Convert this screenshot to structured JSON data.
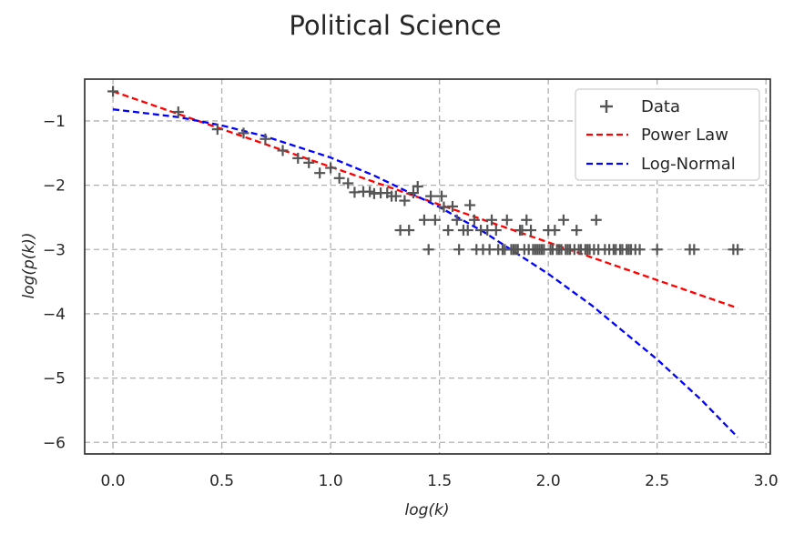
{
  "chart_data": {
    "type": "scatter",
    "title": "Political Science",
    "xlabel": "log(k)",
    "ylabel": "log(p(k))",
    "xlim": [
      -0.13,
      3.02
    ],
    "ylim": [
      -6.18,
      -0.35
    ],
    "x_ticks": [
      0.0,
      0.5,
      1.0,
      1.5,
      2.0,
      2.5,
      3.0
    ],
    "x_tick_labels": [
      "0.0",
      "0.5",
      "1.0",
      "1.5",
      "2.0",
      "2.5",
      "3.0"
    ],
    "y_ticks": [
      -1,
      -2,
      -3,
      -4,
      -5,
      -6
    ],
    "y_tick_labels": [
      "−1",
      "−2",
      "−3",
      "−4",
      "−5",
      "−6"
    ],
    "grid": true,
    "legend_position": "top-right",
    "colors": {
      "data": "#555555",
      "power_law": "#ff0000",
      "log_normal": "#0000ff",
      "grid": "#b0b0b0"
    },
    "series": [
      {
        "name": "Data",
        "kind": "scatter",
        "marker": "+",
        "points": [
          [
            0.0,
            -0.54
          ],
          [
            0.3,
            -0.86
          ],
          [
            0.48,
            -1.13
          ],
          [
            0.6,
            -1.19
          ],
          [
            0.7,
            -1.28
          ],
          [
            0.78,
            -1.46
          ],
          [
            0.85,
            -1.58
          ],
          [
            0.9,
            -1.65
          ],
          [
            0.95,
            -1.81
          ],
          [
            1.0,
            -1.73
          ],
          [
            1.04,
            -1.89
          ],
          [
            1.08,
            -1.97
          ],
          [
            1.11,
            -2.11
          ],
          [
            1.15,
            -2.1
          ],
          [
            1.18,
            -2.1
          ],
          [
            1.2,
            -2.13
          ],
          [
            1.23,
            -2.12
          ],
          [
            1.26,
            -2.12
          ],
          [
            1.28,
            -2.17
          ],
          [
            1.3,
            -2.17
          ],
          [
            1.32,
            -2.7
          ],
          [
            1.34,
            -2.24
          ],
          [
            1.36,
            -2.7
          ],
          [
            1.38,
            -2.12
          ],
          [
            1.4,
            -2.02
          ],
          [
            1.43,
            -2.54
          ],
          [
            1.45,
            -3.0
          ],
          [
            1.46,
            -2.17
          ],
          [
            1.48,
            -2.54
          ],
          [
            1.51,
            -2.17
          ],
          [
            1.52,
            -2.34
          ],
          [
            1.54,
            -2.7
          ],
          [
            1.56,
            -2.33
          ],
          [
            1.58,
            -2.54
          ],
          [
            1.59,
            -3.0
          ],
          [
            1.61,
            -2.7
          ],
          [
            1.63,
            -2.7
          ],
          [
            1.64,
            -2.31
          ],
          [
            1.66,
            -2.54
          ],
          [
            1.67,
            -3.0
          ],
          [
            1.69,
            -2.7
          ],
          [
            1.7,
            -3.0
          ],
          [
            1.72,
            -2.7
          ],
          [
            1.73,
            -3.0
          ],
          [
            1.74,
            -2.54
          ],
          [
            1.76,
            -2.7
          ],
          [
            1.77,
            -3.0
          ],
          [
            1.79,
            -3.0
          ],
          [
            1.8,
            -3.0
          ],
          [
            1.81,
            -2.54
          ],
          [
            1.83,
            -3.0
          ],
          [
            1.84,
            -3.0
          ],
          [
            1.85,
            -3.0
          ],
          [
            1.86,
            -3.0
          ],
          [
            1.87,
            -2.7
          ],
          [
            1.88,
            -2.7
          ],
          [
            1.89,
            -3.0
          ],
          [
            1.9,
            -2.54
          ],
          [
            1.91,
            -3.0
          ],
          [
            1.92,
            -2.7
          ],
          [
            1.93,
            -3.0
          ],
          [
            1.94,
            -3.0
          ],
          [
            1.95,
            -3.0
          ],
          [
            1.96,
            -3.0
          ],
          [
            1.97,
            -3.0
          ],
          [
            1.98,
            -3.0
          ],
          [
            2.0,
            -2.7
          ],
          [
            2.01,
            -3.0
          ],
          [
            2.02,
            -3.0
          ],
          [
            2.03,
            -2.7
          ],
          [
            2.04,
            -3.0
          ],
          [
            2.05,
            -3.0
          ],
          [
            2.06,
            -3.0
          ],
          [
            2.07,
            -2.54
          ],
          [
            2.08,
            -3.0
          ],
          [
            2.09,
            -3.0
          ],
          [
            2.1,
            -3.0
          ],
          [
            2.12,
            -3.0
          ],
          [
            2.13,
            -2.7
          ],
          [
            2.14,
            -3.0
          ],
          [
            2.15,
            -3.0
          ],
          [
            2.17,
            -3.0
          ],
          [
            2.18,
            -3.0
          ],
          [
            2.19,
            -3.0
          ],
          [
            2.21,
            -3.0
          ],
          [
            2.22,
            -2.54
          ],
          [
            2.23,
            -3.0
          ],
          [
            2.26,
            -3.0
          ],
          [
            2.28,
            -3.0
          ],
          [
            2.3,
            -3.0
          ],
          [
            2.31,
            -3.0
          ],
          [
            2.33,
            -3.0
          ],
          [
            2.34,
            -3.0
          ],
          [
            2.36,
            -3.0
          ],
          [
            2.37,
            -3.0
          ],
          [
            2.38,
            -3.0
          ],
          [
            2.4,
            -3.0
          ],
          [
            2.42,
            -3.0
          ],
          [
            2.5,
            -3.0
          ],
          [
            2.65,
            -3.0
          ],
          [
            2.67,
            -3.0
          ],
          [
            2.85,
            -3.0
          ],
          [
            2.87,
            -3.0
          ]
        ]
      },
      {
        "name": "Power Law",
        "kind": "line",
        "dash": "dashed",
        "x": [
          0.0,
          2.87
        ],
        "y": [
          -0.54,
          -3.91
        ]
      },
      {
        "name": "Log-Normal",
        "kind": "line",
        "dash": "dashed",
        "x": [
          0.0,
          0.3,
          0.5,
          0.7,
          1.0,
          1.2,
          1.5,
          1.7,
          2.0,
          2.2,
          2.5,
          2.7,
          2.87
        ],
        "y": [
          -0.82,
          -0.94,
          -1.07,
          -1.24,
          -1.57,
          -1.85,
          -2.34,
          -2.72,
          -3.38,
          -3.87,
          -4.71,
          -5.33,
          -5.92
        ]
      }
    ]
  }
}
